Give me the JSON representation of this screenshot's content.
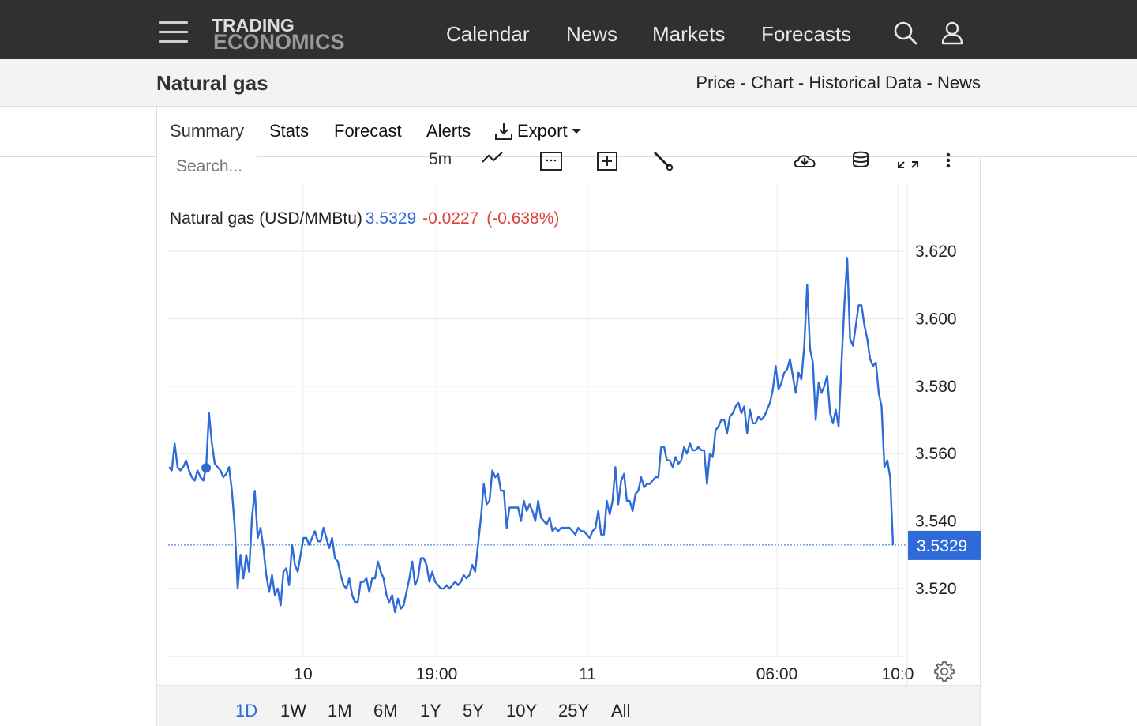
{
  "nav": {
    "logo_line1": "TRADING",
    "logo_line2": "ECONOMICS",
    "links": [
      "Calendar",
      "News",
      "Markets",
      "Forecasts"
    ],
    "icons": [
      "menu-icon",
      "search-icon",
      "user-icon"
    ]
  },
  "titlebar": {
    "title": "Natural gas",
    "links": [
      "Price",
      "Chart",
      "Historical Data",
      "News"
    ],
    "separator": " - "
  },
  "tabs": {
    "active": "Summary",
    "items": [
      "Stats",
      "Forecast",
      "Alerts"
    ],
    "export_label": "Export"
  },
  "toolbar": {
    "search_placeholder": "Search...",
    "interval": "5m",
    "icons": [
      "line-chart-icon",
      "calendar-icon",
      "add-indicator-icon",
      "draw-tool-icon",
      "download-icon",
      "database-icon",
      "fullscreen-icon",
      "more-options-icon"
    ]
  },
  "chart_header": {
    "name": "Natural gas (USD/MMBtu)",
    "price": "3.5329",
    "change": "-0.0227",
    "change_pct": "(-0.638%)"
  },
  "colors": {
    "line": "#2f6bd8",
    "negative": "#e0413a",
    "navbar": "#303030",
    "price_tag_bg": "#2f6bd8"
  },
  "chart_data": {
    "type": "line",
    "title": "",
    "xlabel": "",
    "ylabel": "",
    "ylim": [
      3.5,
      3.625
    ],
    "y_ticks": [
      "3.620",
      "3.600",
      "3.580",
      "3.560",
      "3.540",
      "3.520"
    ],
    "x_tick_labels": [
      "10",
      "19:00",
      "11",
      "06:00",
      "10:0"
    ],
    "last_value": 3.5329,
    "last_value_label": "3.5329",
    "grid": true,
    "series": [
      {
        "values": [
          3.556,
          3.555,
          3.563,
          3.556,
          3.555,
          3.556,
          3.558,
          3.555,
          3.553,
          3.552,
          3.555,
          3.553,
          3.552,
          3.556,
          3.572,
          3.563,
          3.557,
          3.556,
          3.555,
          3.553,
          3.554,
          3.556,
          3.549,
          3.538,
          3.52,
          3.53,
          3.523,
          3.53,
          3.525,
          3.541,
          3.549,
          3.535,
          3.538,
          3.532,
          3.524,
          3.519,
          3.524,
          3.518,
          3.52,
          3.515,
          3.525,
          3.526,
          3.521,
          3.533,
          3.527,
          3.525,
          3.53,
          3.535,
          3.535,
          3.533,
          3.535,
          3.537,
          3.534,
          3.534,
          3.538,
          3.535,
          3.532,
          3.535,
          3.529,
          3.528,
          3.524,
          3.521,
          3.52,
          3.523,
          3.518,
          3.516,
          3.516,
          3.522,
          3.522,
          3.523,
          3.519,
          3.523,
          3.523,
          3.528,
          3.525,
          3.523,
          3.518,
          3.516,
          3.518,
          3.513,
          3.517,
          3.514,
          3.515,
          3.519,
          3.523,
          3.528,
          3.521,
          3.523,
          3.529,
          3.529,
          3.527,
          3.522,
          3.525,
          3.522,
          3.521,
          3.52,
          3.52,
          3.521,
          3.52,
          3.521,
          3.522,
          3.521,
          3.522,
          3.524,
          3.523,
          3.524,
          3.527,
          3.525,
          3.533,
          3.541,
          3.551,
          3.545,
          3.546,
          3.555,
          3.553,
          3.554,
          3.549,
          3.549,
          3.538,
          3.544,
          3.544,
          3.544,
          3.544,
          3.54,
          3.546,
          3.543,
          3.545,
          3.543,
          3.54,
          3.546,
          3.541,
          3.54,
          3.539,
          3.541,
          3.537,
          3.538,
          3.537,
          3.538,
          3.538,
          3.538,
          3.538,
          3.537,
          3.536,
          3.538,
          3.537,
          3.537,
          3.536,
          3.535,
          3.537,
          3.538,
          3.543,
          3.536,
          3.536,
          3.546,
          3.542,
          3.546,
          3.556,
          3.545,
          3.552,
          3.554,
          3.546,
          3.546,
          3.543,
          3.548,
          3.549,
          3.553,
          3.55,
          3.551,
          3.551,
          3.552,
          3.553,
          3.553,
          3.562,
          3.562,
          3.558,
          3.558,
          3.556,
          3.559,
          3.557,
          3.558,
          3.562,
          3.56,
          3.563,
          3.561,
          3.561,
          3.562,
          3.561,
          3.561,
          3.551,
          3.56,
          3.559,
          3.567,
          3.568,
          3.57,
          3.57,
          3.566,
          3.571,
          3.572,
          3.574,
          3.575,
          3.572,
          3.574,
          3.566,
          3.573,
          3.569,
          3.569,
          3.571,
          3.57,
          3.571,
          3.573,
          3.575,
          3.579,
          3.586,
          3.579,
          3.581,
          3.584,
          3.585,
          3.588,
          3.583,
          3.578,
          3.584,
          3.582,
          3.592,
          3.61,
          3.591,
          3.587,
          3.57,
          3.581,
          3.578,
          3.58,
          3.583,
          3.572,
          3.569,
          3.573,
          3.568,
          3.587,
          3.604,
          3.618,
          3.594,
          3.592,
          3.598,
          3.604,
          3.604,
          3.598,
          3.594,
          3.588,
          3.586,
          3.587,
          3.578,
          3.574,
          3.556,
          3.558,
          3.553,
          3.5329
        ]
      }
    ]
  },
  "range_buttons": {
    "items": [
      "1D",
      "1W",
      "1M",
      "6M",
      "1Y",
      "5Y",
      "10Y",
      "25Y",
      "All"
    ],
    "active": "1D"
  }
}
